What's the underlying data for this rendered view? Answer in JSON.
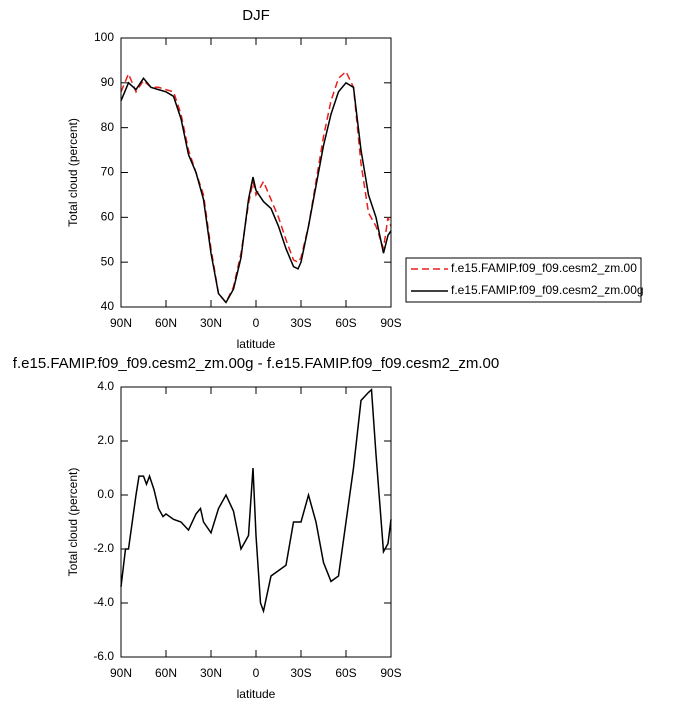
{
  "chart_data": [
    {
      "type": "line",
      "title": "DJF",
      "xlabel": "latitude",
      "ylabel": "Total cloud (percent)",
      "x": [
        90,
        85,
        80,
        75,
        70,
        65,
        60,
        55,
        50,
        45,
        40,
        35,
        30,
        25,
        20,
        15,
        10,
        5,
        2,
        0,
        -5,
        -10,
        -15,
        -20,
        -25,
        -28,
        -30,
        -35,
        -40,
        -45,
        -50,
        -55,
        -60,
        -65,
        -70,
        -75,
        -80,
        -85,
        -88,
        -90
      ],
      "series": [
        {
          "name": "f.e15.FAMIP.f09_f09.cesm2_zm.00",
          "color": "#e8201c",
          "line_style": "dashed",
          "values": [
            88,
            92,
            88,
            90.5,
            89,
            89,
            88.5,
            88,
            83,
            75,
            70,
            65,
            53,
            43,
            41,
            44.5,
            52,
            63,
            68,
            65,
            68,
            64,
            60,
            55,
            50.5,
            50,
            51,
            58,
            68,
            78,
            86,
            91,
            92.5,
            89,
            72,
            61,
            58,
            53,
            60,
            58
          ]
        },
        {
          "name": "f.e15.FAMIP.f09_f09.cesm2_zm.00g",
          "color": "#000000",
          "line_style": "solid",
          "values": [
            86,
            90,
            88.5,
            91,
            89,
            88.5,
            88,
            87,
            82,
            74,
            70,
            64,
            52,
            43,
            41,
            44,
            51,
            64,
            69,
            66,
            63.5,
            62,
            58,
            53,
            49,
            48.5,
            50,
            58,
            67,
            76,
            83,
            88,
            90,
            89,
            75,
            65,
            60,
            52,
            56,
            57
          ]
        }
      ],
      "xlim": [
        90,
        -90
      ],
      "xticks": [
        {
          "value": 90,
          "label": "90N"
        },
        {
          "value": 60,
          "label": "60N"
        },
        {
          "value": 30,
          "label": "30N"
        },
        0,
        {
          "value": -30,
          "label": "30S"
        },
        {
          "value": -60,
          "label": "60S"
        },
        {
          "value": -90,
          "label": "90S"
        }
      ],
      "ylim": [
        40,
        100
      ],
      "yticks": [
        40,
        50,
        60,
        70,
        80,
        90,
        100
      ],
      "legend": "outside-right"
    },
    {
      "type": "line",
      "title": "f.e15.FAMIP.f09_f09.cesm2_zm.00g - f.e15.FAMIP.f09_f09.cesm2_zm.00",
      "xlabel": "latitude",
      "ylabel": "Total cloud (percent)",
      "x": [
        90,
        87,
        85,
        80,
        78,
        75,
        73,
        71,
        68,
        65,
        62,
        60,
        55,
        50,
        45,
        40,
        37,
        35,
        30,
        25,
        20,
        15,
        10,
        5,
        2,
        0,
        -3,
        -5,
        -10,
        -15,
        -20,
        -25,
        -30,
        -35,
        -40,
        -45,
        -50,
        -55,
        -60,
        -65,
        -70,
        -75,
        -77,
        -80,
        -85,
        -88,
        -90
      ],
      "color": "#000000",
      "values": [
        -3.4,
        -2,
        -2,
        0,
        0.7,
        0.7,
        0.4,
        0.7,
        0.2,
        -0.5,
        -0.8,
        -0.7,
        -0.9,
        -1.0,
        -1.3,
        -0.7,
        -0.5,
        -1.0,
        -1.4,
        -0.5,
        0.0,
        -0.6,
        -2.0,
        -1.5,
        1.0,
        -1.5,
        -4.0,
        -4.3,
        -3.0,
        -2.8,
        -2.6,
        -1.0,
        -1.0,
        0.0,
        -1.0,
        -2.5,
        -3.2,
        -3.0,
        -1.0,
        1.0,
        3.5,
        3.8,
        3.9,
        1.5,
        -2.1,
        -1.8,
        -0.9
      ],
      "xlim": [
        90,
        -90
      ],
      "xticks": [
        {
          "value": 90,
          "label": "90N"
        },
        {
          "value": 60,
          "label": "60N"
        },
        {
          "value": 30,
          "label": "30N"
        },
        0,
        {
          "value": -30,
          "label": "30S"
        },
        {
          "value": -60,
          "label": "60S"
        },
        {
          "value": -90,
          "label": "90S"
        }
      ],
      "ylim": [
        -6,
        4
      ],
      "yticks": [
        {
          "value": -6,
          "label": "-6.0"
        },
        {
          "value": -4,
          "label": "-4.0"
        },
        {
          "value": -2,
          "label": "-2.0"
        },
        {
          "value": 0,
          "label": "0.0"
        },
        {
          "value": 2,
          "label": "2.0"
        },
        {
          "value": 4,
          "label": "4.0"
        }
      ]
    }
  ]
}
